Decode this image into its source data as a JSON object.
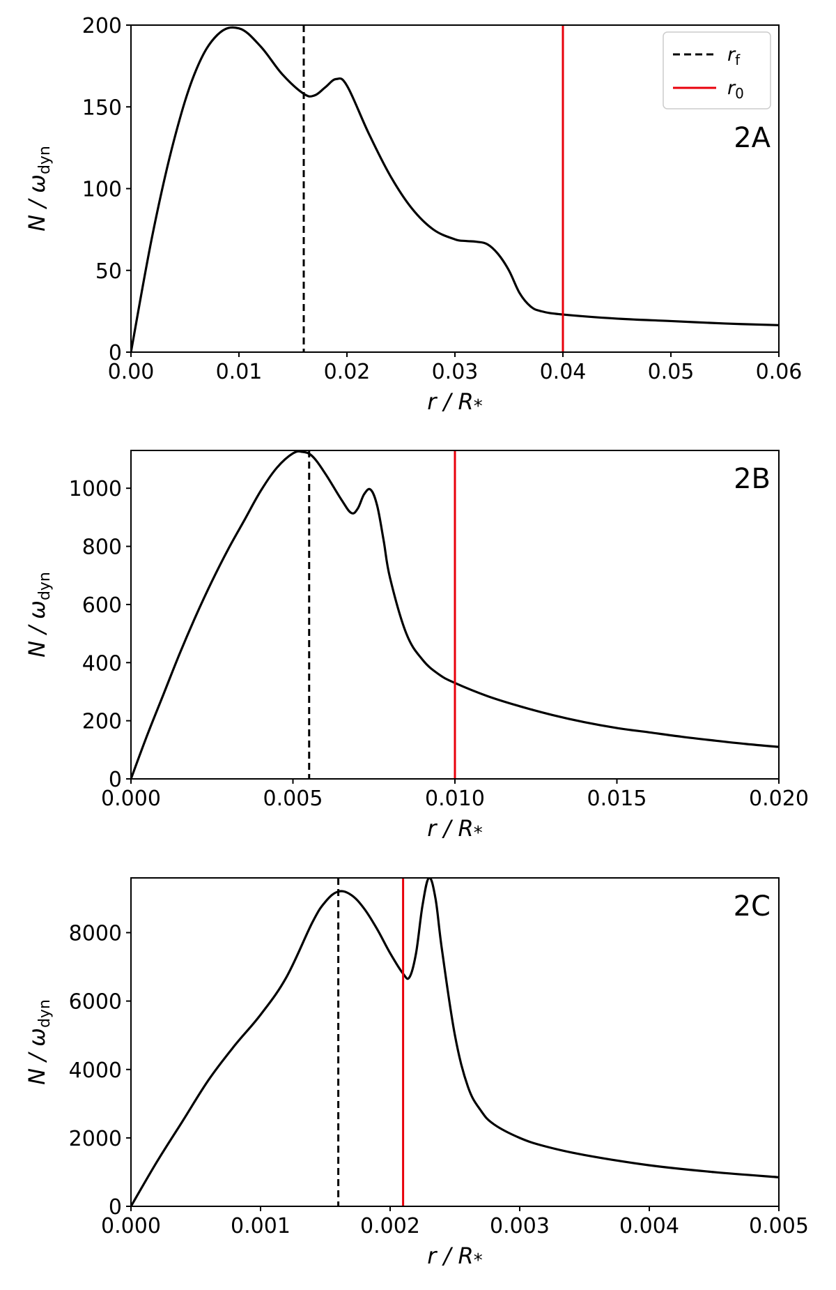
{
  "legend": {
    "items": [
      {
        "key": "rf",
        "symbol": "r",
        "sub": "f",
        "style": "dashed",
        "color": "#000000"
      },
      {
        "key": "r0",
        "symbol": "r",
        "sub": "0",
        "style": "solid",
        "color": "#e8000b"
      }
    ]
  },
  "chart_data": [
    {
      "type": "line",
      "panel_label": "2A",
      "xlabel": "r / R",
      "xlabel_sub": "*",
      "ylabel": "N / ω",
      "ylabel_sub": "dyn",
      "xlim": [
        0,
        0.06
      ],
      "ylim": [
        0,
        200
      ],
      "xticks": [
        0,
        0.01,
        0.02,
        0.03,
        0.04,
        0.05,
        0.06
      ],
      "xtick_labels": [
        "0.00",
        "0.01",
        "0.02",
        "0.03",
        "0.04",
        "0.05",
        "0.06"
      ],
      "yticks": [
        0,
        50,
        100,
        150,
        200
      ],
      "ytick_labels": [
        "0",
        "50",
        "100",
        "150",
        "200"
      ],
      "rf": 0.016,
      "r0": 0.04,
      "legend": true,
      "x": [
        0,
        0.002,
        0.004,
        0.006,
        0.008,
        0.01,
        0.012,
        0.014,
        0.016,
        0.017,
        0.018,
        0.019,
        0.02,
        0.022,
        0.024,
        0.026,
        0.028,
        0.03,
        0.031,
        0.032,
        0.033,
        0.034,
        0.035,
        0.036,
        0.037,
        0.038,
        0.04,
        0.045,
        0.05,
        0.055,
        0.06
      ],
      "y": [
        0,
        72,
        130,
        172,
        194,
        198,
        187,
        170,
        158,
        157,
        162,
        167,
        163,
        134,
        108,
        88,
        75,
        69,
        68,
        67.5,
        66,
        60,
        50,
        36,
        28,
        25,
        23,
        20.5,
        19,
        17.5,
        16.5
      ]
    },
    {
      "type": "line",
      "panel_label": "2B",
      "xlabel": "r / R",
      "xlabel_sub": "*",
      "ylabel": "N / ω",
      "ylabel_sub": "dyn",
      "xlim": [
        0,
        0.02
      ],
      "ylim": [
        0,
        1130
      ],
      "xticks": [
        0,
        0.005,
        0.01,
        0.015,
        0.02
      ],
      "xtick_labels": [
        "0.000",
        "0.005",
        "0.010",
        "0.015",
        "0.020"
      ],
      "yticks": [
        0,
        200,
        400,
        600,
        800,
        1000
      ],
      "ytick_labels": [
        "0",
        "200",
        "400",
        "600",
        "800",
        "1000"
      ],
      "rf": 0.0055,
      "r0": 0.01,
      "legend": false,
      "x": [
        0,
        0.0005,
        0.001,
        0.0015,
        0.002,
        0.0025,
        0.003,
        0.0035,
        0.004,
        0.0045,
        0.005,
        0.0053,
        0.0056,
        0.006,
        0.0065,
        0.0068,
        0.007,
        0.0072,
        0.0074,
        0.0076,
        0.0078,
        0.008,
        0.0085,
        0.009,
        0.0095,
        0.01,
        0.011,
        0.012,
        0.013,
        0.014,
        0.015,
        0.016,
        0.017,
        0.018,
        0.019,
        0.02
      ],
      "y": [
        0,
        150,
        290,
        430,
        560,
        680,
        790,
        890,
        990,
        1070,
        1120,
        1125,
        1110,
        1050,
        960,
        915,
        930,
        980,
        995,
        940,
        820,
        690,
        500,
        410,
        360,
        330,
        285,
        250,
        220,
        195,
        175,
        160,
        145,
        132,
        120,
        110
      ]
    },
    {
      "type": "line",
      "panel_label": "2C",
      "xlabel": "r / R",
      "xlabel_sub": "*",
      "ylabel": "N / ω",
      "ylabel_sub": "dyn",
      "xlim": [
        0,
        0.005
      ],
      "ylim": [
        0,
        9600
      ],
      "xticks": [
        0,
        0.001,
        0.002,
        0.003,
        0.004,
        0.005
      ],
      "xtick_labels": [
        "0.000",
        "0.001",
        "0.002",
        "0.003",
        "0.004",
        "0.005"
      ],
      "yticks": [
        0,
        2000,
        4000,
        6000,
        8000
      ],
      "ytick_labels": [
        "0",
        "2000",
        "4000",
        "6000",
        "8000"
      ],
      "rf": 0.0016,
      "r0": 0.0021,
      "legend": false,
      "x": [
        0,
        0.0002,
        0.0004,
        0.0006,
        0.0008,
        0.001,
        0.0012,
        0.0014,
        0.0015,
        0.0016,
        0.0017,
        0.0018,
        0.0019,
        0.002,
        0.0021,
        0.00215,
        0.0022,
        0.00225,
        0.0023,
        0.00235,
        0.0024,
        0.0025,
        0.0026,
        0.0027,
        0.0028,
        0.003,
        0.0032,
        0.0035,
        0.004,
        0.0045,
        0.005
      ],
      "y": [
        0,
        1300,
        2500,
        3700,
        4700,
        5600,
        6700,
        8300,
        8900,
        9200,
        9100,
        8700,
        8100,
        7400,
        6800,
        6700,
        7400,
        8800,
        9600,
        9000,
        7500,
        5000,
        3500,
        2800,
        2400,
        2000,
        1750,
        1500,
        1200,
        1000,
        850
      ]
    }
  ]
}
